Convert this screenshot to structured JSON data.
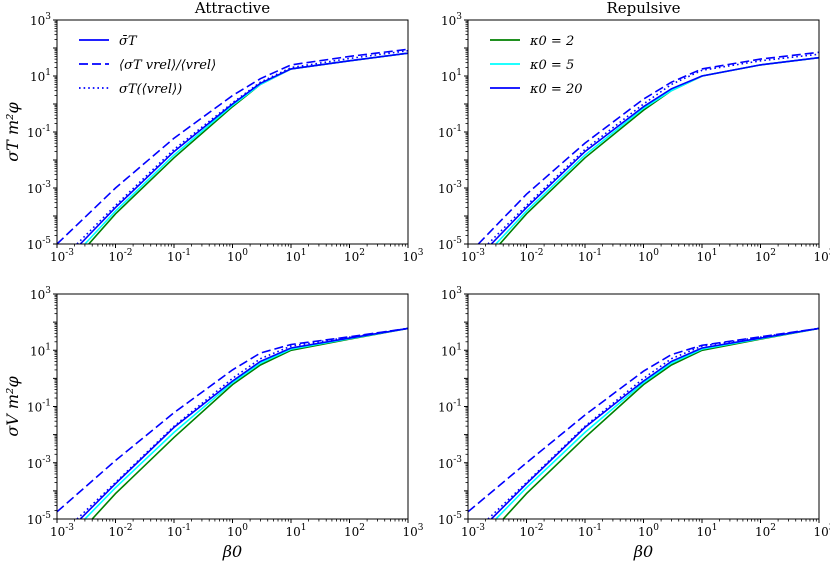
{
  "chart_data": [
    {
      "type": "line",
      "title": "Attractive",
      "ylabel": "σT m²φ",
      "xlabel": "",
      "xscale": "log",
      "yscale": "log",
      "xlim": [
        0.001,
        1000
      ],
      "ylim": [
        1e-05,
        1000
      ],
      "x_ticks": [
        "10^-3",
        "10^-2",
        "10^-1",
        "10^0",
        "10^1",
        "10^2",
        "10^3"
      ],
      "y_ticks": [
        "10^-5",
        "10^-3",
        "10^-1",
        "10^1",
        "10^3"
      ],
      "legend": {
        "location": "top-left",
        "entries": [
          {
            "label": "σ̄T",
            "linestyle": "solid",
            "color": "#0000ff"
          },
          {
            "label": "⟨σT vrel⟩/⟨vrel⟩",
            "linestyle": "dashed",
            "color": "#0000ff"
          },
          {
            "label": "σT(⟨vrel⟩)",
            "linestyle": "dotted",
            "color": "#0000ff"
          }
        ]
      },
      "series": [
        {
          "name": "κ0 = 2 (solid)",
          "color": "#008000",
          "linestyle": "solid",
          "x": [
            0.0035,
            0.01,
            0.1,
            1,
            3,
            10,
            100,
            1000
          ],
          "y": [
            1e-05,
            0.00012,
            0.012,
            0.8,
            5,
            18,
            35,
            65
          ]
        },
        {
          "name": "κ0 = 5 (solid)",
          "color": "#00ffff",
          "linestyle": "solid",
          "x": [
            0.003,
            0.01,
            0.1,
            1,
            3,
            10,
            100,
            1000
          ],
          "y": [
            1e-05,
            0.00015,
            0.015,
            0.9,
            5,
            18,
            35,
            65
          ]
        },
        {
          "name": "κ0 = 20 (solid)",
          "color": "#0000ff",
          "linestyle": "solid",
          "x": [
            0.0025,
            0.01,
            0.1,
            1,
            3,
            10,
            100,
            1000
          ],
          "y": [
            1e-05,
            0.0002,
            0.02,
            1,
            5.5,
            18,
            35,
            65
          ]
        },
        {
          "name": "κ0 = 20 (dashed)",
          "color": "#0000ff",
          "linestyle": "dashed",
          "x": [
            0.001,
            0.01,
            0.1,
            1,
            3,
            10,
            100,
            1000
          ],
          "y": [
            1e-05,
            0.001,
            0.06,
            2,
            8,
            25,
            50,
            90
          ]
        },
        {
          "name": "κ0 = 20 (dotted)",
          "color": "#0000ff",
          "linestyle": "dotted",
          "x": [
            0.0022,
            0.01,
            0.1,
            1,
            3,
            10,
            100,
            1000
          ],
          "y": [
            1e-05,
            0.00024,
            0.024,
            1.1,
            6,
            20,
            42,
            80
          ]
        }
      ]
    },
    {
      "type": "line",
      "title": "Repulsive",
      "ylabel": "",
      "xlabel": "",
      "xscale": "log",
      "yscale": "log",
      "xlim": [
        0.001,
        1000
      ],
      "ylim": [
        1e-05,
        1000
      ],
      "x_ticks": [
        "10^-3",
        "10^-2",
        "10^-1",
        "10^0",
        "10^1",
        "10^2",
        "10^3"
      ],
      "y_ticks": [
        "10^-5",
        "10^-3",
        "10^-1",
        "10^1",
        "10^3"
      ],
      "legend": {
        "location": "top-left",
        "entries": [
          {
            "label": "κ0 = 2",
            "linestyle": "solid",
            "color": "#008000"
          },
          {
            "label": "κ0 = 5",
            "linestyle": "solid",
            "color": "#00ffff"
          },
          {
            "label": "κ0 = 20",
            "linestyle": "solid",
            "color": "#0000ff"
          }
        ]
      },
      "series": [
        {
          "name": "κ0 = 2 (solid)",
          "color": "#008000",
          "linestyle": "solid",
          "x": [
            0.0035,
            0.01,
            0.1,
            1,
            3,
            10,
            100,
            1000
          ],
          "y": [
            1e-05,
            0.00012,
            0.012,
            0.6,
            3,
            10,
            25,
            45
          ]
        },
        {
          "name": "κ0 = 5 (solid)",
          "color": "#00ffff",
          "linestyle": "solid",
          "x": [
            0.003,
            0.01,
            0.1,
            1,
            3,
            10,
            100,
            1000
          ],
          "y": [
            1e-05,
            0.00015,
            0.015,
            0.7,
            3,
            10,
            25,
            45
          ]
        },
        {
          "name": "κ0 = 20 (solid)",
          "color": "#0000ff",
          "linestyle": "solid",
          "x": [
            0.0025,
            0.01,
            0.1,
            1,
            3,
            10,
            100,
            1000
          ],
          "y": [
            1e-05,
            0.0002,
            0.02,
            0.8,
            3.5,
            10,
            25,
            45
          ]
        },
        {
          "name": "κ0 = 20 (dashed)",
          "color": "#0000ff",
          "linestyle": "dashed",
          "x": [
            0.0015,
            0.01,
            0.1,
            1,
            3,
            10,
            100,
            1000
          ],
          "y": [
            1e-05,
            0.0006,
            0.04,
            1.5,
            6,
            18,
            40,
            70
          ]
        },
        {
          "name": "κ0 = 20 (dotted)",
          "color": "#0000ff",
          "linestyle": "dotted",
          "x": [
            0.0022,
            0.01,
            0.1,
            1,
            3,
            10,
            100,
            1000
          ],
          "y": [
            1e-05,
            0.00024,
            0.024,
            1,
            5,
            16,
            35,
            60
          ]
        }
      ]
    },
    {
      "type": "line",
      "title": "",
      "ylabel": "σV m²φ",
      "xlabel": "β0",
      "xscale": "log",
      "yscale": "log",
      "xlim": [
        0.001,
        1000
      ],
      "ylim": [
        1e-05,
        1000
      ],
      "x_ticks": [
        "10^-3",
        "10^-2",
        "10^-1",
        "10^0",
        "10^1",
        "10^2",
        "10^3"
      ],
      "y_ticks": [
        "10^-5",
        "10^-3",
        "10^-1",
        "10^1",
        "10^3"
      ],
      "series": [
        {
          "name": "κ0 = 2 (solid)",
          "color": "#008000",
          "linestyle": "solid",
          "x": [
            0.004,
            0.01,
            0.1,
            1,
            3,
            10,
            100,
            1000
          ],
          "y": [
            1e-05,
            8e-05,
            0.008,
            0.6,
            3,
            10,
            25,
            60
          ]
        },
        {
          "name": "κ0 = 5 (solid)",
          "color": "#00ffff",
          "linestyle": "solid",
          "x": [
            0.003,
            0.01,
            0.1,
            1,
            3,
            10,
            100,
            1000
          ],
          "y": [
            1e-05,
            0.00013,
            0.012,
            0.7,
            3.5,
            11,
            26,
            60
          ]
        },
        {
          "name": "κ0 = 20 (solid)",
          "color": "#0000ff",
          "linestyle": "solid",
          "x": [
            0.0025,
            0.01,
            0.1,
            1,
            3,
            10,
            100,
            1000
          ],
          "y": [
            1e-05,
            0.00018,
            0.018,
            0.8,
            4,
            12,
            27,
            60
          ]
        },
        {
          "name": "κ0 = 20 (dashed)",
          "color": "#0000ff",
          "linestyle": "dashed",
          "x": [
            0.001,
            0.01,
            0.1,
            1,
            3,
            10,
            100,
            1000
          ],
          "y": [
            1.8e-05,
            0.0012,
            0.06,
            2,
            8,
            16,
            30,
            60
          ]
        },
        {
          "name": "κ0 = 20 (dotted)",
          "color": "#0000ff",
          "linestyle": "dotted",
          "x": [
            0.0022,
            0.01,
            0.1,
            1,
            3,
            10,
            100,
            1000
          ],
          "y": [
            1e-05,
            0.0002,
            0.02,
            1,
            5,
            14,
            29,
            60
          ]
        }
      ]
    },
    {
      "type": "line",
      "title": "",
      "ylabel": "",
      "xlabel": "β0",
      "xscale": "log",
      "yscale": "log",
      "xlim": [
        0.001,
        1000
      ],
      "ylim": [
        1e-05,
        1000
      ],
      "x_ticks": [
        "10^-3",
        "10^-2",
        "10^-1",
        "10^0",
        "10^1",
        "10^2",
        "10^3"
      ],
      "y_ticks": [
        "10^-5",
        "10^-3",
        "10^-1",
        "10^1",
        "10^3"
      ],
      "series": [
        {
          "name": "κ0 = 2 (solid)",
          "color": "#008000",
          "linestyle": "solid",
          "x": [
            0.004,
            0.01,
            0.1,
            1,
            3,
            10,
            100,
            1000
          ],
          "y": [
            1e-05,
            8e-05,
            0.008,
            0.6,
            3,
            10,
            25,
            60
          ]
        },
        {
          "name": "κ0 = 5 (solid)",
          "color": "#00ffff",
          "linestyle": "solid",
          "x": [
            0.003,
            0.01,
            0.1,
            1,
            3,
            10,
            100,
            1000
          ],
          "y": [
            1e-05,
            0.00013,
            0.012,
            0.7,
            3.5,
            11,
            26,
            60
          ]
        },
        {
          "name": "κ0 = 20 (solid)",
          "color": "#0000ff",
          "linestyle": "solid",
          "x": [
            0.0025,
            0.01,
            0.1,
            1,
            3,
            10,
            100,
            1000
          ],
          "y": [
            1e-05,
            0.00018,
            0.018,
            0.8,
            4,
            12,
            27,
            60
          ]
        },
        {
          "name": "κ0 = 20 (dashed)",
          "color": "#0000ff",
          "linestyle": "dashed",
          "x": [
            0.001,
            0.01,
            0.1,
            1,
            3,
            10,
            100,
            1000
          ],
          "y": [
            1.8e-05,
            0.001,
            0.05,
            1.8,
            7,
            15,
            30,
            60
          ]
        },
        {
          "name": "κ0 = 20 (dotted)",
          "color": "#0000ff",
          "linestyle": "dotted",
          "x": [
            0.0022,
            0.01,
            0.1,
            1,
            3,
            10,
            100,
            1000
          ],
          "y": [
            1e-05,
            0.0002,
            0.02,
            1,
            5,
            14,
            29,
            60
          ]
        }
      ]
    }
  ]
}
